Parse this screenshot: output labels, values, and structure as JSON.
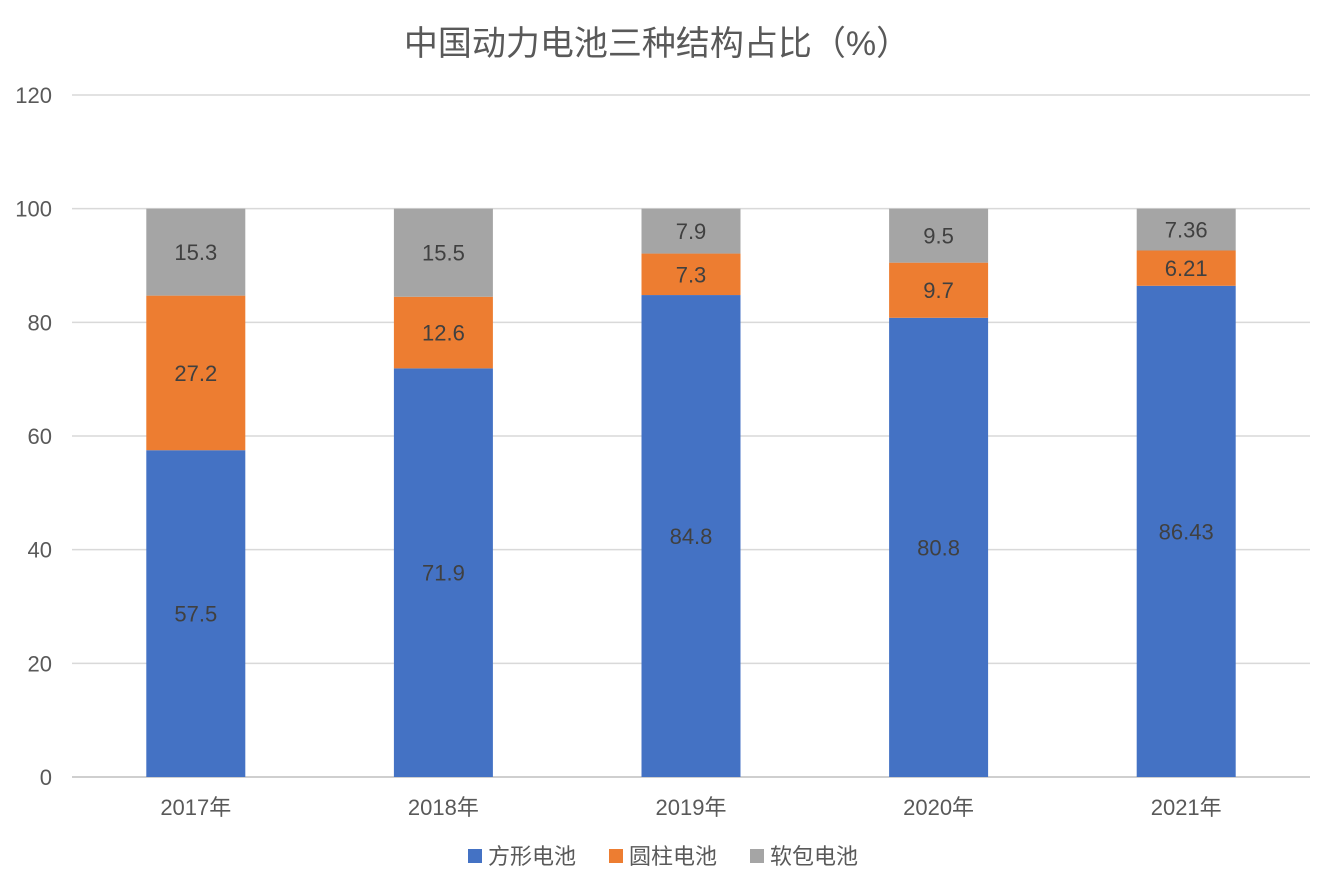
{
  "chart_data": {
    "type": "bar",
    "stacked": true,
    "title": "中国动力电池三种结构占比（%）",
    "xlabel": "",
    "ylabel": "",
    "ylim": [
      0,
      120
    ],
    "yticks": [
      "0",
      "20",
      "40",
      "60",
      "80",
      "100",
      "120"
    ],
    "grid": true,
    "legend_position": "bottom",
    "categories": [
      "2017年",
      "2018年",
      "2019年",
      "2020年",
      "2021年"
    ],
    "series": [
      {
        "name": "方形电池",
        "color": "#4472C4",
        "values": [
          57.5,
          71.9,
          84.8,
          80.8,
          86.43
        ],
        "labels": [
          "57.5",
          "71.9",
          "84.8",
          "80.8",
          "86.43"
        ]
      },
      {
        "name": "圆柱电池",
        "color": "#ED7D31",
        "values": [
          27.2,
          12.6,
          7.3,
          9.7,
          6.21
        ],
        "labels": [
          "27.2",
          "12.6",
          "7.3",
          "9.7",
          "6.21"
        ]
      },
      {
        "name": "软包电池",
        "color": "#A5A5A5",
        "values": [
          15.3,
          15.5,
          7.9,
          9.5,
          7.36
        ],
        "labels": [
          "15.3",
          "15.5",
          "7.9",
          "9.5",
          "7.36"
        ]
      }
    ]
  }
}
